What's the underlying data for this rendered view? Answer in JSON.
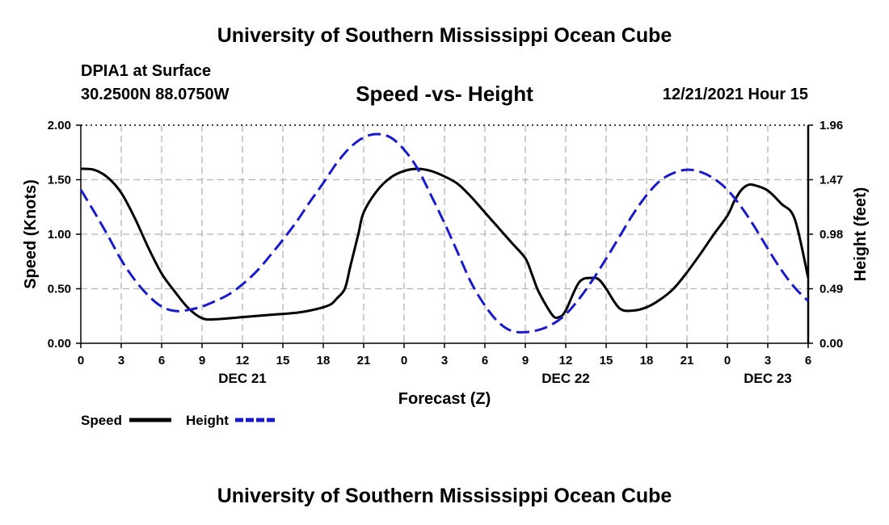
{
  "header": {
    "title": "University of Southern Mississippi Ocean Cube",
    "station": "DPIA1 at Surface",
    "coordinates": "30.2500N  88.0750W",
    "chart_title": "Speed -vs- Height",
    "datetime": "12/21/2021 Hour 15"
  },
  "footer": {
    "title": "University of Southern Mississippi Ocean Cube"
  },
  "colors": {
    "speed": "#000000",
    "height": "#1a1acc",
    "grid": "#b4b4b4"
  },
  "chart_data": {
    "type": "line",
    "title": "Speed -vs- Height",
    "xlabel": "Forecast (Z)",
    "ylabel": "Speed (Knots)",
    "y2label": "Height (feet)",
    "xlim": [
      0,
      54
    ],
    "ylim": [
      0,
      2.0
    ],
    "y2lim": [
      0,
      1.96
    ],
    "x_ticks": [
      0,
      3,
      6,
      9,
      12,
      15,
      18,
      21,
      24,
      27,
      30,
      33,
      36,
      39,
      42,
      45,
      48,
      51,
      54
    ],
    "x_tick_labels": [
      "0",
      "3",
      "6",
      "9",
      "12",
      "15",
      "18",
      "21",
      "0",
      "3",
      "6",
      "9",
      "12",
      "15",
      "18",
      "21",
      "0",
      "3",
      "6"
    ],
    "y_tick_labels": [
      "0.00",
      "0.50",
      "1.00",
      "1.50",
      "2.00"
    ],
    "y_ticks": [
      0,
      0.5,
      1.0,
      1.5,
      2.0
    ],
    "y2_tick_labels": [
      "0.00",
      "0.49",
      "0.98",
      "1.47",
      "1.96"
    ],
    "y2_ticks": [
      0,
      0.49,
      0.98,
      1.47,
      1.96
    ],
    "date_labels": [
      {
        "label": "DEC 21",
        "x": 12
      },
      {
        "label": "DEC 22",
        "x": 36
      },
      {
        "label": "DEC 23",
        "x": 51
      }
    ],
    "grid": true,
    "series": [
      {
        "name": "Speed",
        "axis": "left",
        "style": "solid",
        "x": [
          0,
          1,
          2,
          3,
          4,
          5,
          6,
          7,
          8,
          9,
          10,
          12,
          14,
          16,
          17,
          18,
          18.6,
          19,
          19.6,
          20,
          20.6,
          21,
          22,
          23,
          24,
          25,
          26,
          27,
          28,
          29,
          30,
          31,
          32,
          33,
          33.5,
          34,
          35,
          35.5,
          36,
          37,
          38,
          38.5,
          39,
          40,
          41,
          42,
          43,
          44,
          45,
          46,
          47,
          48,
          48.5,
          49,
          49.5,
          50,
          51,
          52,
          53,
          54
        ],
        "values": [
          1.6,
          1.59,
          1.52,
          1.38,
          1.15,
          0.88,
          0.64,
          0.47,
          0.32,
          0.23,
          0.22,
          0.24,
          0.26,
          0.28,
          0.3,
          0.33,
          0.36,
          0.41,
          0.5,
          0.7,
          1.0,
          1.2,
          1.4,
          1.52,
          1.58,
          1.6,
          1.58,
          1.53,
          1.46,
          1.34,
          1.2,
          1.06,
          0.92,
          0.78,
          0.63,
          0.47,
          0.26,
          0.24,
          0.3,
          0.56,
          0.6,
          0.58,
          0.5,
          0.32,
          0.3,
          0.33,
          0.4,
          0.5,
          0.65,
          0.82,
          1.0,
          1.17,
          1.3,
          1.4,
          1.45,
          1.45,
          1.4,
          1.28,
          1.14,
          0.6
        ]
      },
      {
        "name": "Height",
        "axis": "right",
        "style": "dashed",
        "x": [
          0,
          1,
          2,
          3,
          4,
          5,
          6,
          7,
          8,
          9,
          10,
          11,
          12,
          13,
          14,
          15,
          16,
          17,
          18,
          19,
          20,
          21,
          22,
          23,
          24,
          25,
          26,
          27,
          28,
          29,
          30,
          31,
          32,
          33,
          34,
          35,
          36,
          37,
          38,
          39,
          40,
          41,
          42,
          43,
          44,
          45,
          46,
          47,
          48,
          49,
          50,
          51,
          52,
          53,
          54
        ],
        "values": [
          1.38,
          1.18,
          0.97,
          0.75,
          0.57,
          0.43,
          0.33,
          0.29,
          0.3,
          0.33,
          0.38,
          0.44,
          0.53,
          0.64,
          0.78,
          0.93,
          1.09,
          1.27,
          1.44,
          1.62,
          1.76,
          1.85,
          1.88,
          1.85,
          1.74,
          1.57,
          1.33,
          1.08,
          0.81,
          0.54,
          0.34,
          0.19,
          0.11,
          0.1,
          0.12,
          0.17,
          0.26,
          0.4,
          0.57,
          0.76,
          0.96,
          1.16,
          1.33,
          1.46,
          1.53,
          1.56,
          1.54,
          1.48,
          1.38,
          1.23,
          1.05,
          0.85,
          0.66,
          0.5,
          0.38
        ]
      }
    ],
    "legend": [
      {
        "label": "Speed",
        "style": "solid"
      },
      {
        "label": "Height",
        "style": "dashed"
      }
    ]
  }
}
